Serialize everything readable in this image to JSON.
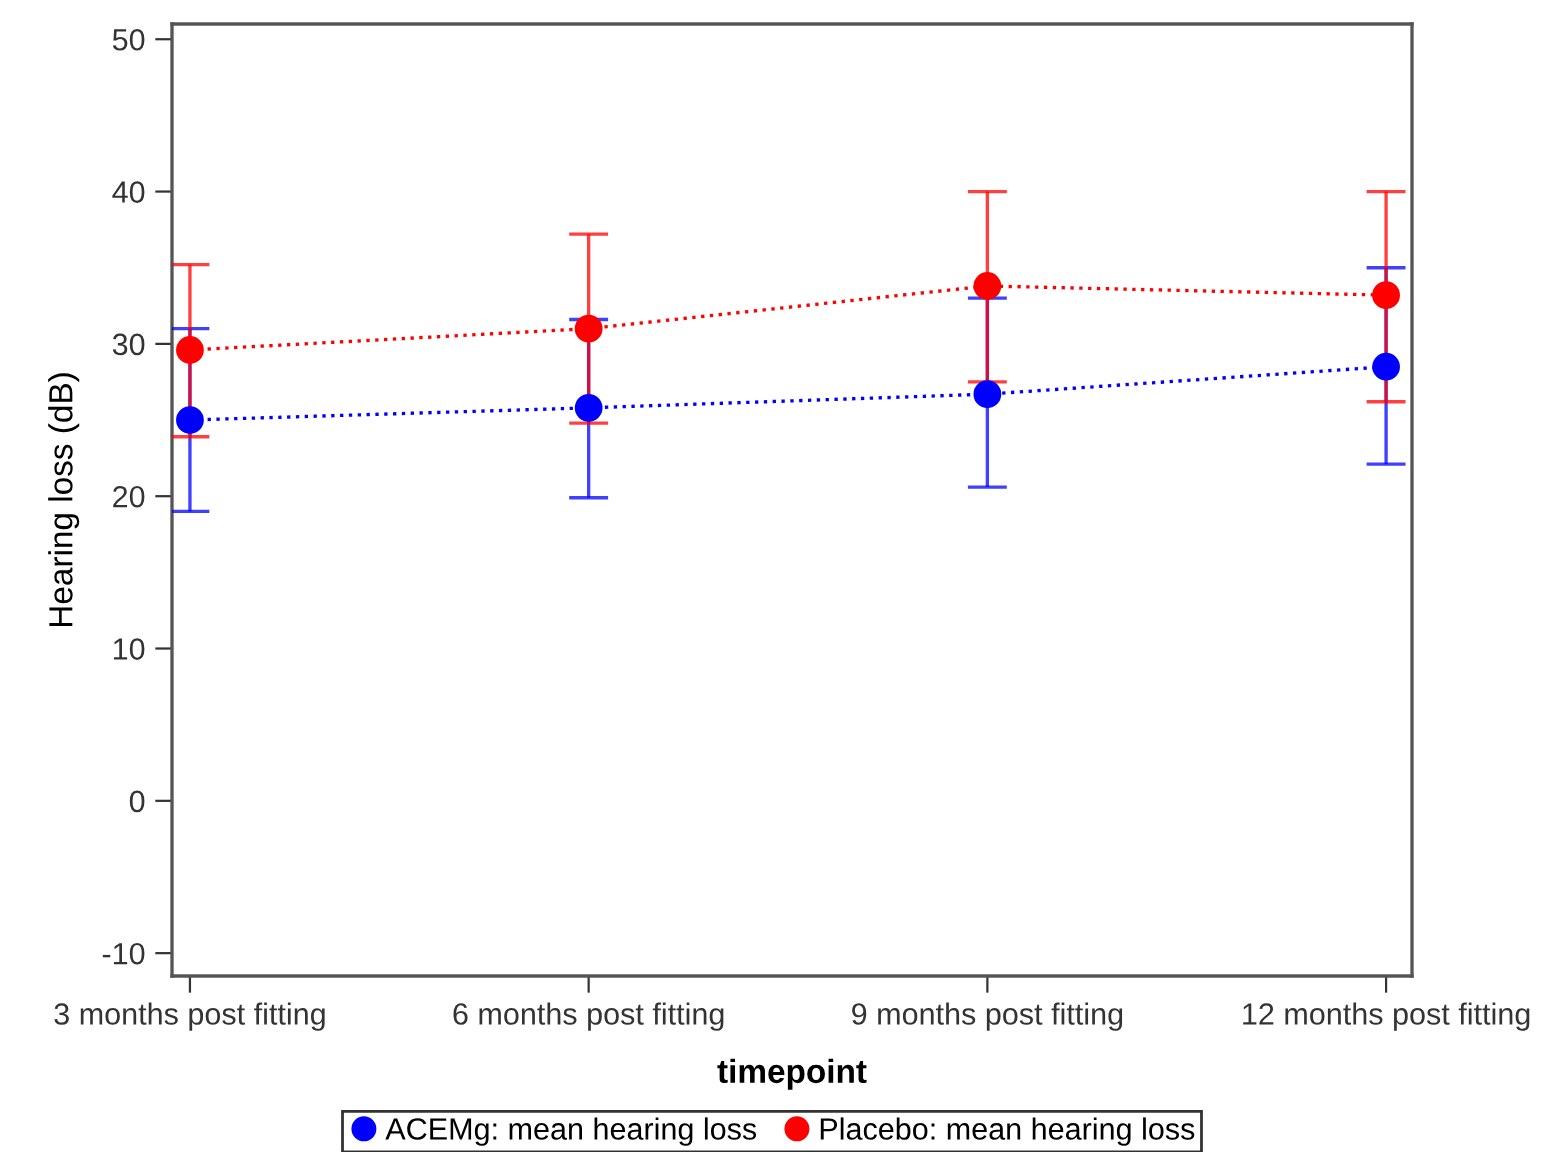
{
  "chart_data": {
    "type": "line",
    "xlabel": "timepoint",
    "ylabel": "Hearing loss (dB)",
    "categories": [
      "3 months post fitting",
      "6 months post fitting",
      "9 months post fitting",
      "12 months post fitting"
    ],
    "series": [
      {
        "name": "ACEMg: mean hearing loss",
        "color": "#0000ff",
        "values": [
          25.0,
          25.8,
          26.7,
          28.5
        ],
        "errors": [
          [
            19.0,
            31.0
          ],
          [
            19.9,
            31.6
          ],
          [
            20.6,
            33.0
          ],
          [
            22.1,
            35.0
          ]
        ]
      },
      {
        "name": "Placebo: mean hearing loss",
        "color": "#ff0000",
        "values": [
          29.6,
          31.0,
          33.8,
          33.2
        ],
        "errors": [
          [
            23.9,
            35.2
          ],
          [
            24.8,
            37.2
          ],
          [
            27.5,
            40.0
          ],
          [
            26.2,
            40.0
          ]
        ]
      }
    ],
    "ylim": [
      -11.5,
      51
    ],
    "yticks": [
      -10,
      0,
      10,
      20,
      30,
      40,
      50
    ],
    "grid": false,
    "legend": "bottom",
    "marker": "circle",
    "line_style": "dotted"
  }
}
